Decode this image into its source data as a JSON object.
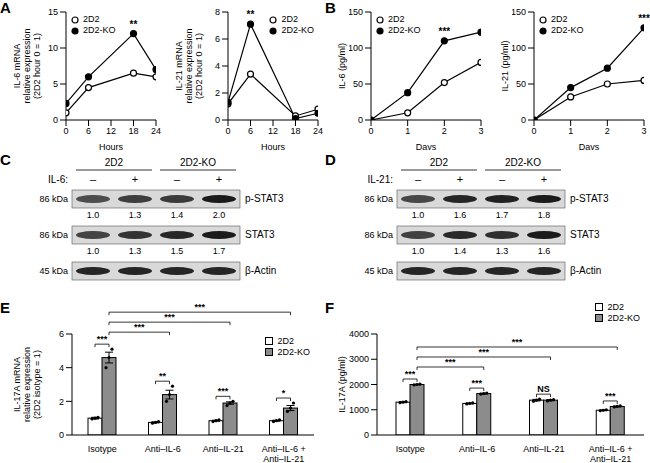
{
  "chart_data": [
    {
      "panel": "A",
      "type": "line",
      "x": [
        0,
        6,
        18,
        24
      ],
      "xlabel": "Hours",
      "ylabel": "IL-6 mRNA\nrelative expression\n(2D2 hour 0 = 1)",
      "xlim": [
        0,
        24
      ],
      "xticks": [
        0,
        6,
        12,
        18,
        24
      ],
      "ylim": [
        0,
        15
      ],
      "yticks": [
        0,
        5,
        10,
        15
      ],
      "legend": "upper left",
      "series": [
        {
          "name": "2D2",
          "color": "#000000",
          "marker": "open_circle",
          "values": [
            1,
            4.5,
            6.5,
            6
          ]
        },
        {
          "name": "2D2-KO",
          "color": "#000000",
          "marker": "circle",
          "values": [
            2.3,
            6,
            12,
            7
          ]
        }
      ],
      "annotations": [
        {
          "x": 18,
          "text": "**"
        }
      ]
    },
    {
      "type": "line",
      "x": [
        0,
        6,
        18,
        24
      ],
      "xlabel": "Hours",
      "ylabel": "IL-21 mRNA\nrelative expression\n(2D2 hour 0 = 1)",
      "xlim": [
        0,
        24
      ],
      "xticks": [
        0,
        6,
        12,
        18,
        24
      ],
      "ylim": [
        0,
        8
      ],
      "yticks": [
        0,
        2,
        4,
        6,
        8
      ],
      "legend": "upper right",
      "series": [
        {
          "name": "2D2",
          "color": "#000000",
          "marker": "open_circle",
          "values": [
            1.2,
            3.4,
            0.3,
            0.8
          ]
        },
        {
          "name": "2D2-KO",
          "color": "#000000",
          "marker": "circle",
          "values": [
            1.3,
            7.1,
            0.1,
            0.5
          ]
        }
      ],
      "annotations": [
        {
          "x": 6,
          "text": "**"
        }
      ]
    },
    {
      "panel": "B",
      "type": "line",
      "x": [
        0,
        1,
        2,
        3
      ],
      "xlabel": "Days",
      "ylabel": "IL-6 (pg/ml)",
      "xlim": [
        0,
        3
      ],
      "xticks": [
        0,
        1,
        2,
        3
      ],
      "ylim": [
        0,
        150
      ],
      "yticks": [
        0,
        50,
        100,
        150
      ],
      "legend": "upper left",
      "series": [
        {
          "name": "2D2",
          "color": "#000000",
          "marker": "open_circle",
          "values": [
            0,
            10,
            52,
            80
          ]
        },
        {
          "name": "2D2-KO",
          "color": "#000000",
          "marker": "circle",
          "values": [
            0,
            38,
            110,
            122
          ]
        }
      ],
      "annotations": [
        {
          "x": 2,
          "text": "***"
        }
      ]
    },
    {
      "type": "line",
      "x": [
        0,
        1,
        2,
        3
      ],
      "xlabel": "Days",
      "ylabel": "IL-21 (pg/ml)",
      "xlim": [
        0,
        3
      ],
      "xticks": [
        0,
        1,
        2,
        3
      ],
      "ylim": [
        0,
        150
      ],
      "yticks": [
        0,
        50,
        100,
        150
      ],
      "legend": "upper left",
      "series": [
        {
          "name": "2D2",
          "color": "#000000",
          "marker": "open_circle",
          "values": [
            0,
            32,
            50,
            55
          ]
        },
        {
          "name": "2D2-KO",
          "color": "#000000",
          "marker": "circle",
          "values": [
            0,
            45,
            72,
            128
          ]
        }
      ],
      "annotations": [
        {
          "x": 3,
          "text": "***"
        }
      ]
    },
    {
      "panel": "E",
      "type": "bar",
      "categories": [
        "Isotype",
        "Anti–IL-6",
        "Anti–IL-21",
        "Anti–IL-6 +\nAnti–IL-21"
      ],
      "ylabel": "IL-17A mRNA\nrelative expression\n(2D2 isotype = 1)",
      "ylim": [
        0,
        6
      ],
      "yticks": [
        0,
        2,
        4,
        6
      ],
      "legend": "upper right",
      "series": [
        {
          "name": "2D2",
          "color": "#ffffff",
          "values": [
            1.0,
            0.75,
            0.85,
            0.85
          ],
          "errors": [
            0.05,
            0.03,
            0.03,
            0.03
          ],
          "points": [
            [
              0.95,
              1.0,
              1.05
            ],
            [
              0.7,
              0.75,
              0.8
            ],
            [
              0.8,
              0.85,
              0.9
            ],
            [
              0.8,
              0.85,
              0.9
            ]
          ]
        },
        {
          "name": "2D2-KO",
          "color": "#8c8c8c",
          "values": [
            4.6,
            2.4,
            1.9,
            1.6
          ],
          "errors": [
            0.32,
            0.26,
            0.07,
            0.15
          ],
          "points": [
            [
              4.0,
              4.6,
              5.1
            ],
            [
              2.0,
              2.4,
              2.9
            ],
            [
              1.75,
              1.9,
              2.0
            ],
            [
              1.4,
              1.6,
              1.9
            ]
          ]
        }
      ],
      "annotations": [
        {
          "category": "Isotype",
          "text": "***"
        },
        {
          "category": "Anti–IL-6",
          "text": "**"
        },
        {
          "category": "Anti–IL-21",
          "text": "***"
        },
        {
          "category": "Anti–IL-6 +\nAnti–IL-21",
          "text": "*"
        },
        {
          "from": "Isotype",
          "to": "Anti–IL-6",
          "series": "2D2-KO",
          "text": "***"
        },
        {
          "from": "Isotype",
          "to": "Anti–IL-21",
          "series": "2D2-KO",
          "text": "***"
        },
        {
          "from": "Isotype",
          "to": "Anti–IL-6 +\nAnti–IL-21",
          "series": "2D2-KO",
          "text": "***"
        }
      ]
    },
    {
      "panel": "F",
      "type": "bar",
      "categories": [
        "Isotype",
        "Anti–IL-6",
        "Anti–IL-21",
        "Anti–IL-6 +\nAnti–IL-21"
      ],
      "ylabel": "IL-17A (pg/ml)",
      "ylim": [
        0,
        4000
      ],
      "yticks": [
        0,
        1000,
        2000,
        3000,
        4000
      ],
      "legend": "upper right",
      "series": [
        {
          "name": "2D2",
          "color": "#ffffff",
          "values": [
            1300,
            1250,
            1380,
            980
          ],
          "errors": [
            15,
            15,
            30,
            15
          ],
          "points": [
            [
              1280,
              1300,
              1320
            ],
            [
              1230,
              1250,
              1270
            ],
            [
              1340,
              1380,
              1420
            ],
            [
              960,
              980,
              1000
            ]
          ]
        },
        {
          "name": "2D2-KO",
          "color": "#8c8c8c",
          "values": [
            2000,
            1640,
            1380,
            1130
          ],
          "errors": [
            15,
            15,
            20,
            15
          ],
          "points": [
            [
              1980,
              2000,
              2020
            ],
            [
              1620,
              1640,
              1660
            ],
            [
              1350,
              1380,
              1400
            ],
            [
              1110,
              1130,
              1150
            ]
          ]
        }
      ],
      "annotations": [
        {
          "category": "Isotype",
          "text": "***"
        },
        {
          "category": "Anti–IL-6",
          "text": "***"
        },
        {
          "category": "Anti–IL-21",
          "text": "NS"
        },
        {
          "category": "Anti–IL-6 +\nAnti–IL-21",
          "text": "***"
        },
        {
          "from": "Isotype",
          "to": "Anti–IL-6",
          "series": "2D2-KO",
          "text": "***"
        },
        {
          "from": "Isotype",
          "to": "Anti–IL-21",
          "series": "2D2-KO",
          "text": "***"
        },
        {
          "from": "Isotype",
          "to": "Anti–IL-6 +\nAnti–IL-21",
          "series": "2D2-KO",
          "text": "***"
        }
      ]
    }
  ],
  "blots": [
    {
      "panel": "C",
      "groups": [
        "2D2",
        "2D2-KO"
      ],
      "treatment": "IL-6:",
      "lanes": [
        "–",
        "+",
        "–",
        "+"
      ],
      "rows": [
        {
          "name": "p-STAT3",
          "kda": "86 kDa",
          "quantification": [
            1.0,
            1.3,
            1.4,
            2.0
          ]
        },
        {
          "name": "STAT3",
          "kda": "86 kDa",
          "quantification": [
            1.0,
            1.3,
            1.5,
            1.7
          ]
        },
        {
          "name": "β-Actin",
          "kda": "45 kDa"
        }
      ]
    },
    {
      "panel": "D",
      "groups": [
        "2D2",
        "2D2-KO"
      ],
      "treatment": "IL-21:",
      "lanes": [
        "–",
        "+",
        "–",
        "+"
      ],
      "rows": [
        {
          "name": "p-STAT3",
          "kda": "86 kDa",
          "quantification": [
            1.0,
            1.6,
            1.7,
            1.8
          ]
        },
        {
          "name": "STAT3",
          "kda": "86 kDa",
          "quantification": [
            1.0,
            1.4,
            1.3,
            1.6
          ]
        },
        {
          "name": "β-Actin",
          "kda": "45 kDa"
        }
      ]
    }
  ]
}
